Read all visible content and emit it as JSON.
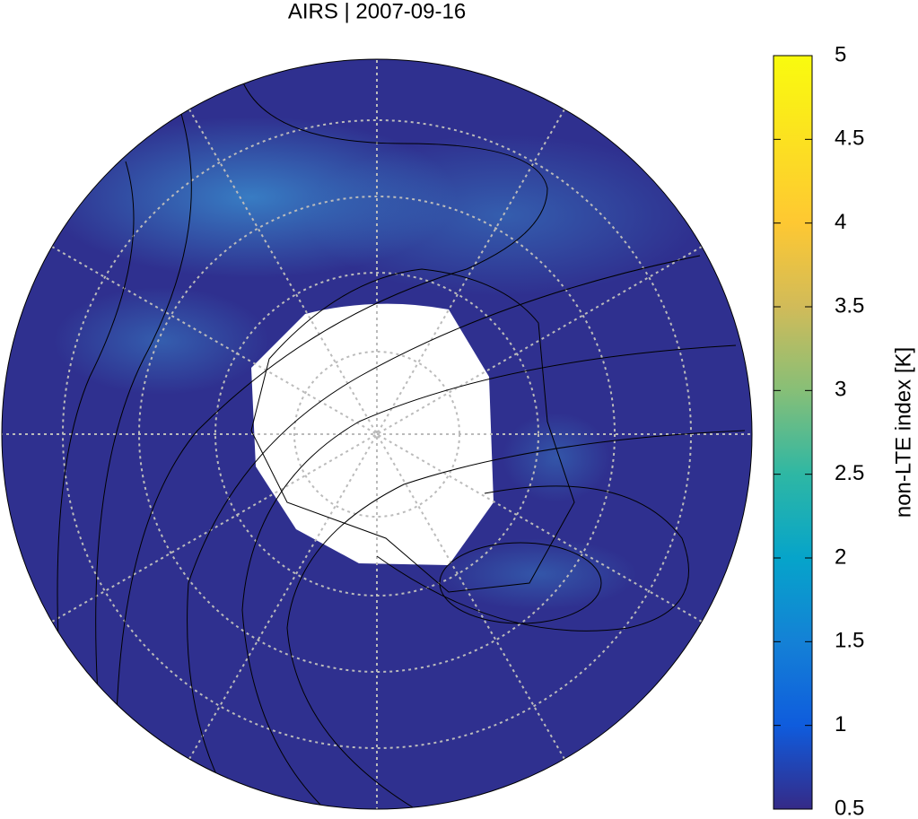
{
  "chart_data": {
    "type": "map",
    "title": "AIRS | 2007-09-16",
    "colorbar": {
      "label": "non-LTE index [K]",
      "lim": [
        0.5,
        5
      ],
      "ticks": [
        0.5,
        1,
        1.5,
        2,
        2.5,
        3,
        3.5,
        4,
        4.5,
        5
      ]
    }
  }
}
